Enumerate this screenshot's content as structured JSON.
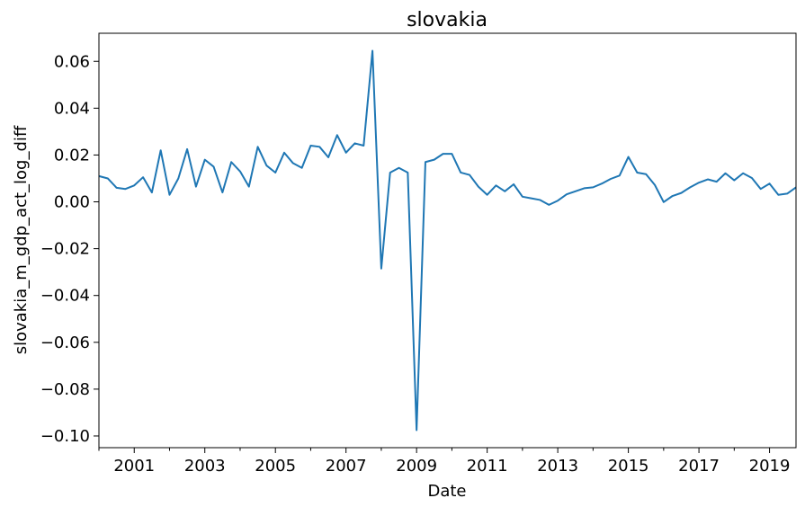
{
  "chart_data": {
    "type": "line",
    "title": "slovakia",
    "xlabel": "Date",
    "ylabel": "slovakia_m_gdp_act_log_diff",
    "grid": false,
    "legend": "none",
    "xlim": [
      "2000-01-01",
      "2019-10-01"
    ],
    "ylim": [
      -0.105,
      0.072
    ],
    "x_ticks": [
      "2001",
      "2003",
      "2005",
      "2007",
      "2009",
      "2011",
      "2013",
      "2015",
      "2017",
      "2019"
    ],
    "y_ticks": [
      "0.06",
      "0.04",
      "0.02",
      "0.00",
      "−0.02",
      "−0.04",
      "−0.06",
      "−0.08",
      "−0.10"
    ],
    "line_color": "#1f77b4",
    "series": [
      {
        "x": [
          "2000-01-01",
          "2000-04-01",
          "2000-07-01",
          "2000-10-01",
          "2001-01-01",
          "2001-04-01",
          "2001-07-01",
          "2001-10-01",
          "2002-01-01",
          "2002-04-01",
          "2002-07-01",
          "2002-10-01",
          "2003-01-01",
          "2003-04-01",
          "2003-07-01",
          "2003-10-01",
          "2004-01-01",
          "2004-04-01",
          "2004-07-01",
          "2004-10-01",
          "2005-01-01",
          "2005-04-01",
          "2005-07-01",
          "2005-10-01",
          "2006-01-01",
          "2006-04-01",
          "2006-07-01",
          "2006-10-01",
          "2007-01-01",
          "2007-04-01",
          "2007-07-01",
          "2007-10-01",
          "2008-01-01",
          "2008-04-01",
          "2008-07-01",
          "2008-10-01",
          "2009-01-01",
          "2009-04-01",
          "2009-07-01",
          "2009-10-01",
          "2010-01-01",
          "2010-04-01",
          "2010-07-01",
          "2010-10-01",
          "2011-01-01",
          "2011-04-01",
          "2011-07-01",
          "2011-10-01",
          "2012-01-01",
          "2012-04-01",
          "2012-07-01",
          "2012-10-01",
          "2013-01-01",
          "2013-04-01",
          "2013-07-01",
          "2013-10-01",
          "2014-01-01",
          "2014-04-01",
          "2014-07-01",
          "2014-10-01",
          "2015-01-01",
          "2015-04-01",
          "2015-07-01",
          "2015-10-01",
          "2016-01-01",
          "2016-04-01",
          "2016-07-01",
          "2016-10-01",
          "2017-01-01",
          "2017-04-01",
          "2017-07-01",
          "2017-10-01",
          "2018-01-01",
          "2018-04-01",
          "2018-07-01",
          "2018-10-01",
          "2019-01-01",
          "2019-04-01",
          "2019-07-01",
          "2019-10-01"
        ],
        "values": [
          0.011,
          0.01,
          0.006,
          0.0055,
          0.007,
          0.0105,
          0.004,
          0.022,
          0.003,
          0.01,
          0.0225,
          0.0065,
          0.018,
          0.015,
          0.004,
          0.017,
          0.013,
          0.0065,
          0.0235,
          0.0155,
          0.0125,
          0.021,
          0.0165,
          0.0145,
          0.024,
          0.0235,
          0.019,
          0.0285,
          0.021,
          0.025,
          0.024,
          0.0645,
          -0.0285,
          0.0125,
          0.0145,
          0.0125,
          -0.0975,
          0.017,
          0.018,
          0.0205,
          0.0205,
          0.0125,
          0.0115,
          0.0065,
          0.003,
          0.007,
          0.0045,
          0.0075,
          0.0022,
          0.0015,
          0.0008,
          -0.0013,
          0.0005,
          0.0032,
          0.0045,
          0.0058,
          0.0062,
          0.0078,
          0.0098,
          0.0112,
          0.0192,
          0.0125,
          0.0118,
          0.0072,
          -0.0001,
          0.0025,
          0.0038,
          0.0062,
          0.0082,
          0.0096,
          0.0086,
          0.0122,
          0.0092,
          0.0122,
          0.0102,
          0.0055,
          0.0078,
          0.003,
          0.0035,
          0.0062
        ]
      }
    ]
  }
}
